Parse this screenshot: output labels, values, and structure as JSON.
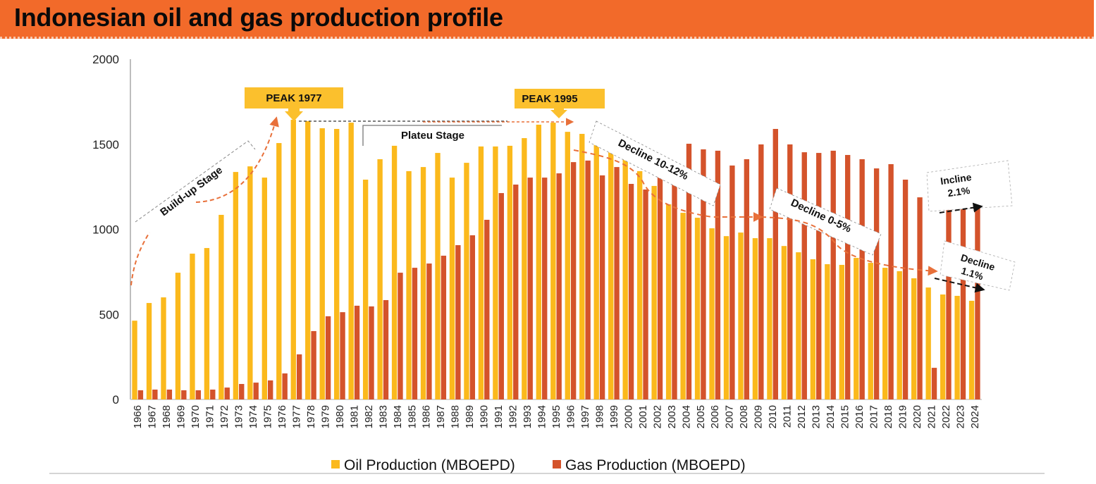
{
  "header": {
    "title": "Indonesian oil and gas production profile"
  },
  "colors": {
    "header_bg": "#f26a2a",
    "oil": "#fbb91c",
    "gas": "#d4532b",
    "callout": "#fbc02d",
    "trend_orange": "#e8703a",
    "trend_black": "#111111"
  },
  "chart_data": {
    "type": "bar",
    "title": "Indonesian oil and gas production profile",
    "xlabel": "",
    "ylabel": "",
    "ylim": [
      0,
      2000
    ],
    "yticks": [
      0,
      500,
      1000,
      1500,
      2000
    ],
    "grid": false,
    "legend_position": "bottom",
    "categories": [
      "1966",
      "1967",
      "1968",
      "1969",
      "1970",
      "1971",
      "1972",
      "1973",
      "1974",
      "1975",
      "1976",
      "1977",
      "1978",
      "1979",
      "1980",
      "1981",
      "1982",
      "1983",
      "1984",
      "1985",
      "1986",
      "1987",
      "1988",
      "1989",
      "1990",
      "1991",
      "1992",
      "1993",
      "1994",
      "1995",
      "1996",
      "1997",
      "1998",
      "1999",
      "2000",
      "2001",
      "2002",
      "2003",
      "2004",
      "2005",
      "2006",
      "2007",
      "2008",
      "2009",
      "2010",
      "2011",
      "2012",
      "2013",
      "2014",
      "2015",
      "2016",
      "2017",
      "2018",
      "2019",
      "2020",
      "2021",
      "2022",
      "2023",
      "2024"
    ],
    "series": [
      {
        "name": "Oil Production (MBOEPD)",
        "color": "#fbb91c",
        "values": [
          463,
          567,
          600,
          745,
          857,
          890,
          1085,
          1337,
          1370,
          1304,
          1507,
          1644,
          1636,
          1594,
          1590,
          1627,
          1292,
          1412,
          1491,
          1342,
          1366,
          1449,
          1304,
          1391,
          1487,
          1487,
          1491,
          1536,
          1615,
          1627,
          1573,
          1561,
          1499,
          1453,
          1412,
          1342,
          1255,
          1147,
          1097,
          1068,
          1006,
          960,
          981,
          948,
          948,
          902,
          865,
          824,
          795,
          791,
          832,
          803,
          774,
          754,
          712,
          658,
          617,
          609,
          580
        ]
      },
      {
        "name": "Gas Production (MBOEPD)",
        "color": "#d4532b",
        "values": [
          54,
          58,
          58,
          54,
          54,
          58,
          70,
          91,
          99,
          112,
          153,
          265,
          402,
          489,
          513,
          551,
          547,
          584,
          745,
          774,
          799,
          845,
          907,
          965,
          1056,
          1213,
          1263,
          1304,
          1304,
          1329,
          1395,
          1404,
          1317,
          1366,
          1267,
          1234,
          1312,
          1267,
          1503,
          1470,
          1462,
          1375,
          1412,
          1499,
          1590,
          1499,
          1453,
          1449,
          1462,
          1437,
          1412,
          1358,
          1383,
          1292,
          1188,
          186,
          1130,
          1151,
          1168
        ]
      }
    ],
    "annotations": {
      "peak1": "PEAK 1977",
      "peak2": "PEAK 1995",
      "buildup": "Build-up Stage",
      "plateau": "Plateu Stage",
      "decline1": "Decline 10-12%",
      "decline2": "Decline 0-5%",
      "incline_l1": "Incline",
      "incline_l2": "2.1%",
      "decline3_l1": "Decline",
      "decline3_l2": "1.1%"
    }
  }
}
